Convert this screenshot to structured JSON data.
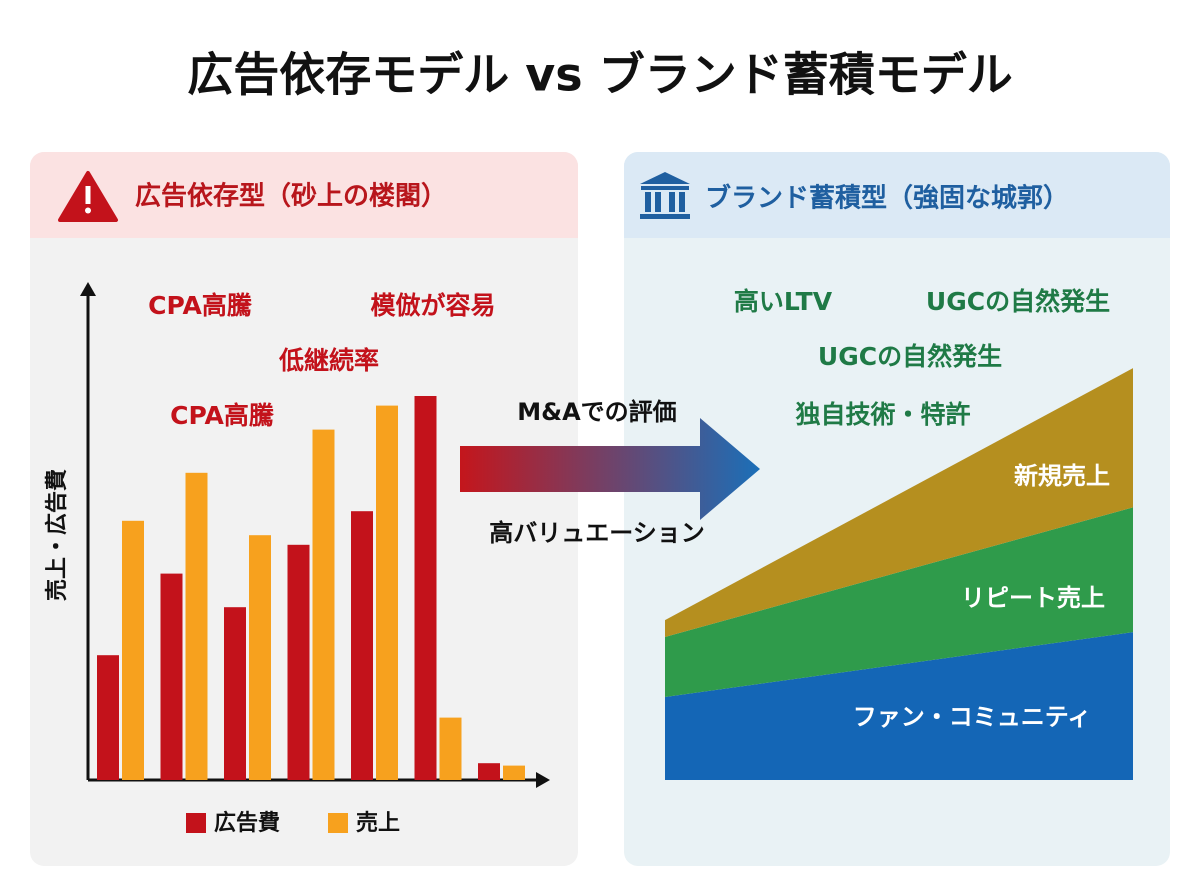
{
  "title": "広告依存モデル vs ブランド蓄積モデル",
  "arrow": {
    "top": "M&Aでの評価",
    "bottom": "高バリュエーション"
  },
  "chart_data": [
    {
      "type": "bar",
      "panel_title": "広告依存型（砂上の楼閣）",
      "y_label": "売上・広告費",
      "annotations": [
        "CPA高騰",
        "模倣が容易",
        "低継続率",
        "CPA高騰"
      ],
      "categories": [
        null,
        null,
        null,
        null,
        null,
        null,
        null
      ],
      "series": [
        {
          "name": "広告費",
          "color": "#c3121b",
          "values": [
            26,
            43,
            36,
            49,
            56,
            80,
            3.5
          ]
        },
        {
          "name": "売上",
          "color": "#f7a11e",
          "values": [
            54,
            64,
            51,
            73,
            78,
            13,
            3
          ]
        }
      ],
      "ylim": [
        0,
        100
      ]
    },
    {
      "type": "area",
      "stacked": true,
      "panel_title": "ブランド蓄積型（強固な城郭）",
      "annotations": [
        "高いLTV",
        "UGCの自然発生",
        "UGCの自然発生",
        "独自技術・特許"
      ],
      "categories": [
        null,
        null
      ],
      "series": [
        {
          "name": "ファン・コミュニティ",
          "color": "#1466b6",
          "values": [
            17.3,
            30.8
          ]
        },
        {
          "name": "リピート売上",
          "color": "#2f9b4b",
          "values": [
            12.5,
            26
          ]
        },
        {
          "name": "新規売上",
          "color": "#b58f1f",
          "values": [
            3.5,
            29
          ]
        }
      ],
      "ylim": [
        0,
        100
      ]
    }
  ]
}
